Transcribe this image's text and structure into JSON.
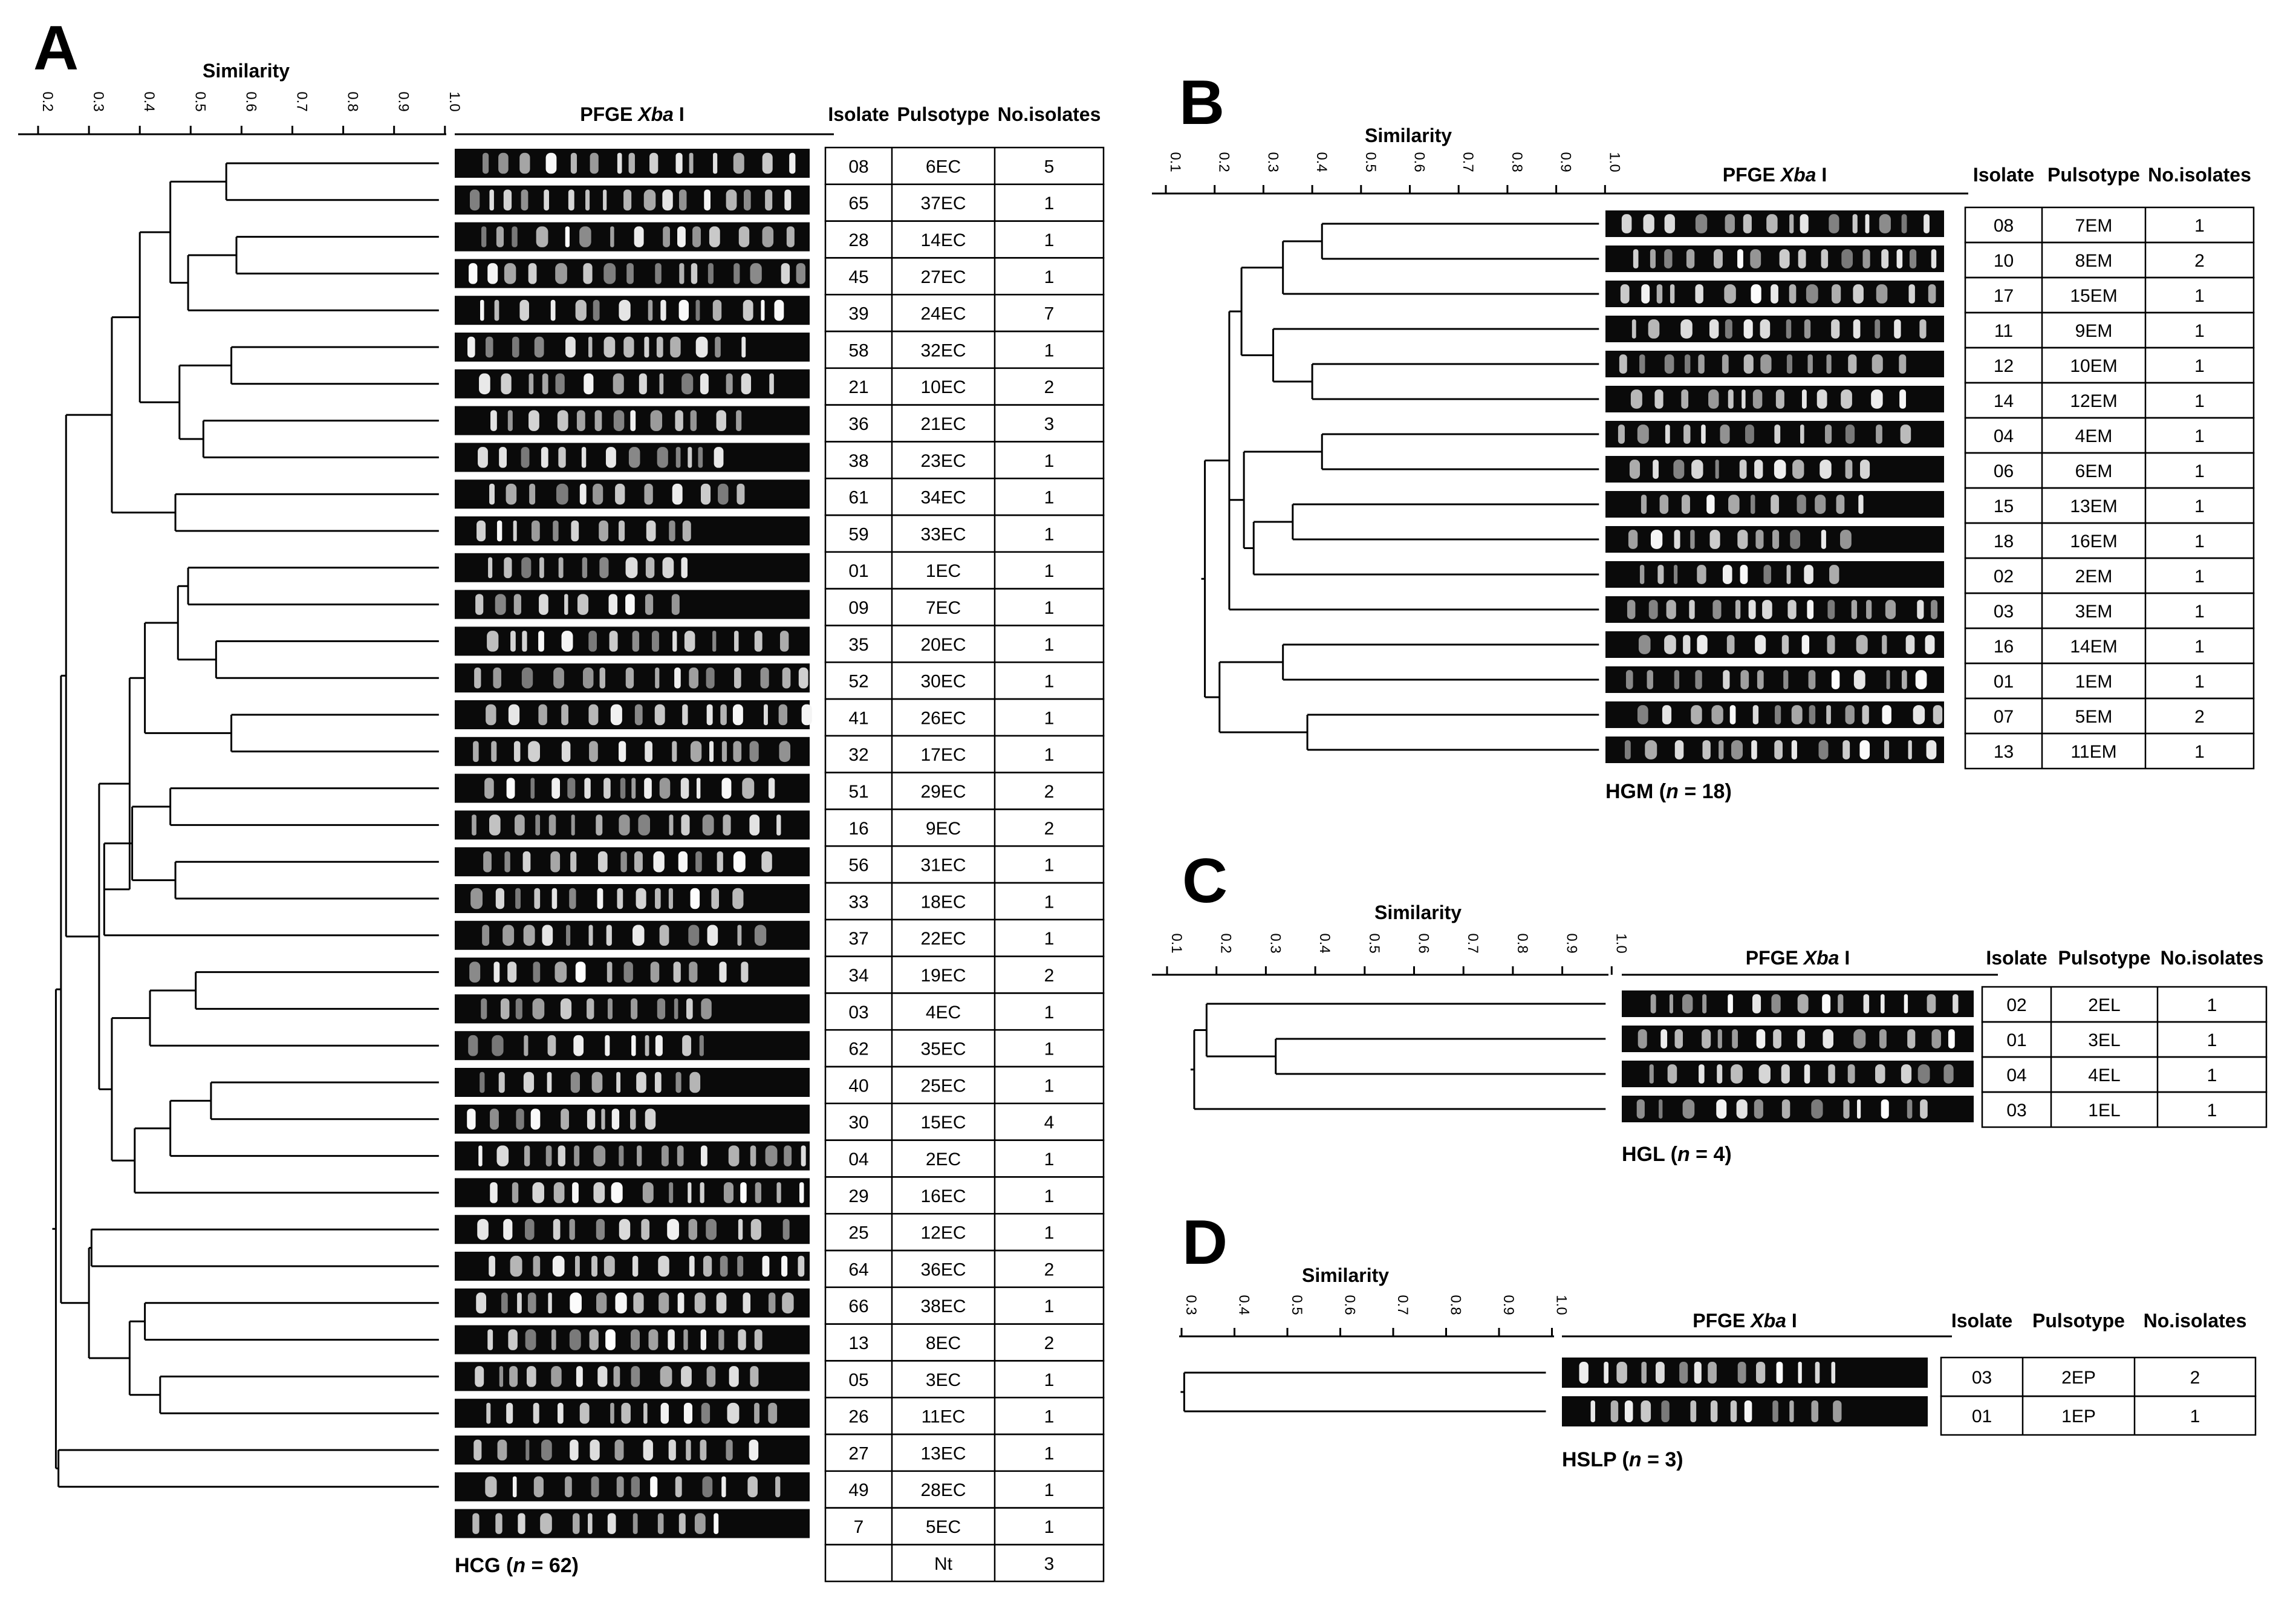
{
  "panels": [
    {
      "id": "A",
      "label": "A",
      "similarity_title": "Similarity",
      "tick_labels": [
        "0.2",
        "0.3",
        "0.4",
        "0.5",
        "0.6",
        "0.7",
        "0.8",
        "0.9",
        "1.0"
      ],
      "gel_title": "PFGE",
      "gel_enzyme": "Xba",
      "gel_suffix": "I",
      "table_headers": [
        "Isolate",
        "Pulsotype",
        "No.isolates"
      ],
      "rows": [
        [
          "08",
          "6EC",
          "5"
        ],
        [
          "65",
          "37EC",
          "1"
        ],
        [
          "28",
          "14EC",
          "1"
        ],
        [
          "45",
          "27EC",
          "1"
        ],
        [
          "39",
          "24EC",
          "7"
        ],
        [
          "58",
          "32EC",
          "1"
        ],
        [
          "21",
          "10EC",
          "2"
        ],
        [
          "36",
          "21EC",
          "3"
        ],
        [
          "38",
          "23EC",
          "1"
        ],
        [
          "61",
          "34EC",
          "1"
        ],
        [
          "59",
          "33EC",
          "1"
        ],
        [
          "01",
          "1EC",
          "1"
        ],
        [
          "09",
          "7EC",
          "1"
        ],
        [
          "35",
          "20EC",
          "1"
        ],
        [
          "52",
          "30EC",
          "1"
        ],
        [
          "41",
          "26EC",
          "1"
        ],
        [
          "32",
          "17EC",
          "1"
        ],
        [
          "51",
          "29EC",
          "2"
        ],
        [
          "16",
          "9EC",
          "2"
        ],
        [
          "56",
          "31EC",
          "1"
        ],
        [
          "33",
          "18EC",
          "1"
        ],
        [
          "37",
          "22EC",
          "1"
        ],
        [
          "34",
          "19EC",
          "2"
        ],
        [
          "03",
          "4EC",
          "1"
        ],
        [
          "62",
          "35EC",
          "1"
        ],
        [
          "40",
          "25EC",
          "1"
        ],
        [
          "30",
          "15EC",
          "4"
        ],
        [
          "04",
          "2EC",
          "1"
        ],
        [
          "29",
          "16EC",
          "1"
        ],
        [
          "25",
          "12EC",
          "1"
        ],
        [
          "64",
          "36EC",
          "2"
        ],
        [
          "66",
          "38EC",
          "1"
        ],
        [
          "13",
          "8EC",
          "2"
        ],
        [
          "05",
          "3EC",
          "1"
        ],
        [
          "26",
          "11EC",
          "1"
        ],
        [
          "27",
          "13EC",
          "1"
        ],
        [
          "49",
          "28EC",
          "1"
        ],
        [
          "7",
          "5EC",
          "1"
        ],
        [
          "",
          "Nt",
          "3"
        ]
      ],
      "caption_group": "HCG",
      "caption_n": "n",
      "caption_value": " = 62)"
    },
    {
      "id": "B",
      "label": "B",
      "similarity_title": "Similarity",
      "tick_labels": [
        "0.1",
        "0.2",
        "0.3",
        "0.4",
        "0.5",
        "0.6",
        "0.7",
        "0.8",
        "0.9",
        "1.0"
      ],
      "gel_title": "PFGE",
      "gel_enzyme": "Xba",
      "gel_suffix": "I",
      "table_headers": [
        "Isolate",
        "Pulsotype",
        "No.isolates"
      ],
      "rows": [
        [
          "08",
          "7EM",
          "1"
        ],
        [
          "10",
          "8EM",
          "2"
        ],
        [
          "17",
          "15EM",
          "1"
        ],
        [
          "11",
          "9EM",
          "1"
        ],
        [
          "12",
          "10EM",
          "1"
        ],
        [
          "14",
          "12EM",
          "1"
        ],
        [
          "04",
          "4EM",
          "1"
        ],
        [
          "06",
          "6EM",
          "1"
        ],
        [
          "15",
          "13EM",
          "1"
        ],
        [
          "18",
          "16EM",
          "1"
        ],
        [
          "02",
          "2EM",
          "1"
        ],
        [
          "03",
          "3EM",
          "1"
        ],
        [
          "16",
          "14EM",
          "1"
        ],
        [
          "01",
          "1EM",
          "1"
        ],
        [
          "07",
          "5EM",
          "2"
        ],
        [
          "13",
          "11EM",
          "1"
        ]
      ],
      "caption_group": "HGM",
      "caption_n": "n",
      "caption_value": " = 18)"
    },
    {
      "id": "C",
      "label": "C",
      "similarity_title": "Similarity",
      "tick_labels": [
        "0.1",
        "0.2",
        "0.3",
        "0.4",
        "0.5",
        "0.6",
        "0.7",
        "0.8",
        "0.9",
        "1.0"
      ],
      "gel_title": "PFGE",
      "gel_enzyme": "Xba",
      "gel_suffix": "I",
      "table_headers": [
        "Isolate",
        "Pulsotype",
        "No.isolates"
      ],
      "rows": [
        [
          "02",
          "2EL",
          "1"
        ],
        [
          "01",
          "3EL",
          "1"
        ],
        [
          "04",
          "4EL",
          "1"
        ],
        [
          "03",
          "1EL",
          "1"
        ]
      ],
      "caption_group": "HGL",
      "caption_n": "n",
      "caption_value": " = 4)"
    },
    {
      "id": "D",
      "label": "D",
      "similarity_title": "Similarity",
      "tick_labels": [
        "0.3",
        "0.4",
        "0.5",
        "0.6",
        "0.7",
        "0.8",
        "0.9",
        "1.0"
      ],
      "gel_title": "PFGE",
      "gel_enzyme": "Xba",
      "gel_suffix": "I",
      "table_headers": [
        "Isolate",
        "Pulsotype",
        "No.isolates"
      ],
      "rows": [
        [
          "03",
          "2EP",
          "2"
        ],
        [
          "01",
          "1EP",
          "1"
        ]
      ],
      "caption_group": "HSLP",
      "caption_n": "n",
      "caption_value": " = 3)"
    }
  ]
}
